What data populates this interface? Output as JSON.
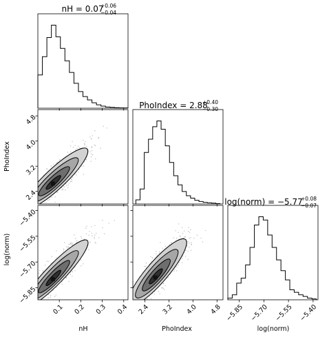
{
  "chart_data": {
    "type": "corner",
    "params": [
      "nH",
      "PhoIndex",
      "log(norm)"
    ],
    "axis_labels": {
      "nH": "nH",
      "PhoIndex": "PhoIndex",
      "lognorm": "log(norm)"
    },
    "titles": [
      {
        "param": "nH",
        "prefix": "nH = ",
        "median": "0.07",
        "plus": "+0.06",
        "minus": "−0.04"
      },
      {
        "param": "PhoIndex",
        "prefix": "PhoIndex = ",
        "median": "2.88",
        "plus": "+0.40",
        "minus": "−0.30"
      },
      {
        "param": "log(norm)",
        "prefix": "log(norm) = ",
        "median": "−5.77",
        "plus": "+0.08",
        "minus": "−0.07"
      }
    ],
    "ticks": {
      "nH": {
        "values": [
          0.1,
          0.2,
          0.3,
          0.4
        ],
        "labels": [
          "0.1",
          "0.2",
          "0.3",
          "0.4"
        ]
      },
      "PhoIndex": {
        "values": [
          2.4,
          3.2,
          4.0,
          4.8
        ],
        "labels": [
          "2.4",
          "3.2",
          "4.0",
          "4.8"
        ]
      },
      "lognorm": {
        "values": [
          -5.85,
          -5.7,
          -5.55,
          -5.4
        ],
        "labels": [
          "−5.85",
          "−5.70",
          "−5.55",
          "−5.40"
        ]
      }
    },
    "ranges": {
      "nH": [
        0.0,
        0.42
      ],
      "PhoIndex": [
        2.0,
        5.0
      ],
      "lognorm": [
        -5.92,
        -5.37
      ]
    },
    "histograms": {
      "nH": {
        "bins": [
          0.0,
          0.42
        ],
        "counts": [
          0.4,
          0.62,
          0.85,
          1.0,
          0.86,
          0.72,
          0.57,
          0.43,
          0.3,
          0.2,
          0.14,
          0.1,
          0.065,
          0.04,
          0.025,
          0.015,
          0.01,
          0.006,
          0.004,
          0.003
        ]
      },
      "PhoIndex": {
        "bins": [
          2.1,
          4.9
        ],
        "counts": [
          0.05,
          0.18,
          0.62,
          0.78,
          0.93,
          1.0,
          0.9,
          0.7,
          0.5,
          0.34,
          0.23,
          0.15,
          0.1,
          0.07,
          0.045,
          0.03,
          0.02,
          0.015,
          0.01,
          0.005
        ]
      },
      "lognorm": {
        "bins": [
          -5.92,
          -5.38
        ],
        "counts": [
          0.02,
          0.06,
          0.2,
          0.26,
          0.42,
          0.63,
          0.9,
          1.0,
          0.96,
          0.78,
          0.63,
          0.48,
          0.35,
          0.24,
          0.12,
          0.09,
          0.06,
          0.04,
          0.02,
          0.01
        ]
      }
    },
    "correlations": {
      "nH|PhoIndex": 0.8,
      "nH|lognorm": 0.84,
      "PhoIndex|lognorm": 0.78
    },
    "colors": {
      "line": "#000000",
      "points": "#bdbdbd",
      "contour_fill": [
        "#d2d2d2",
        "#a6a6a6",
        "#6e6e6e",
        "#2f2f2f"
      ]
    }
  }
}
